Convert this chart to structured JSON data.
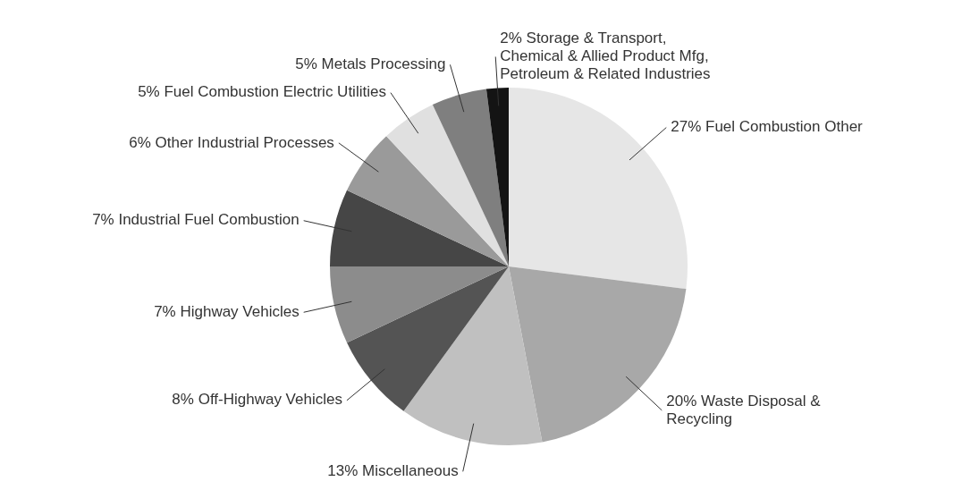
{
  "chart_data": {
    "type": "pie",
    "categories": [
      "Fuel Combustion Other",
      "Waste Disposal &\nRecycling",
      "Miscellaneous",
      "Off-Highway Vehicles",
      "Highway Vehicles",
      "Industrial Fuel Combustion",
      "Other Industrial Processes",
      "Fuel Combustion Electric Utilities",
      "Metals Processing",
      "Storage & Transport,\nChemical & Allied Product Mfg,\nPetroleum & Related Industries"
    ],
    "values": [
      27,
      20,
      13,
      8,
      7,
      7,
      6,
      5,
      5,
      2
    ],
    "value_labels": [
      "27%",
      "20%",
      "13%",
      "8%",
      "7%",
      "7%",
      "6%",
      "5%",
      "5%",
      "2%"
    ],
    "colors": [
      "#e6e6e6",
      "#a8a8a8",
      "#c0c0c0",
      "#545454",
      "#8c8c8c",
      "#464646",
      "#9a9a9a",
      "#e0e0e0",
      "#7f7f7f",
      "#141414"
    ],
    "legend": false
  }
}
